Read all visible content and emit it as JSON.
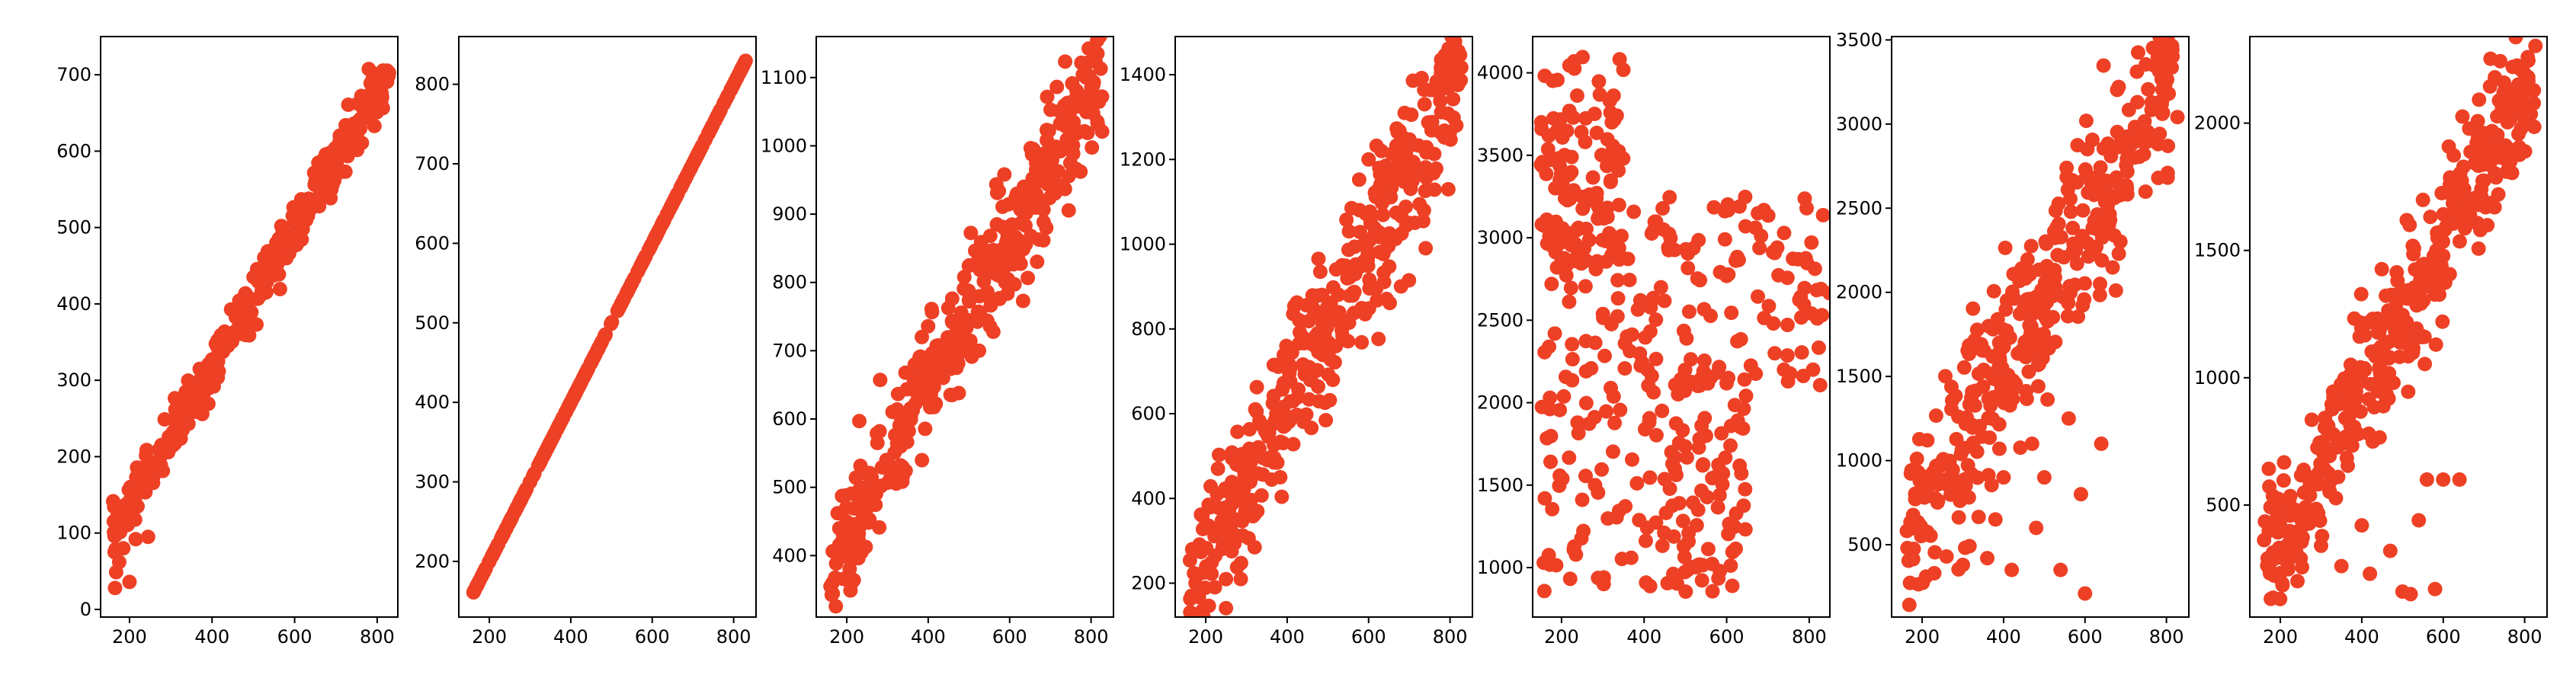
{
  "chart_data": [
    {
      "type": "scatter",
      "xlim": [
        130,
        850
      ],
      "ylim": [
        -10,
        750
      ],
      "xticks": [
        200,
        400,
        600,
        800
      ],
      "yticks": [
        0,
        100,
        200,
        300,
        400,
        500,
        600,
        700
      ],
      "marker_color": "#ee4025",
      "pattern": {
        "kind": "linear",
        "slope": 0.91,
        "intercept": -48,
        "noise": 16,
        "outliers": [
          [
            165,
            28
          ],
          [
            175,
            62
          ],
          [
            185,
            80
          ],
          [
            200,
            36
          ],
          [
            215,
            92
          ],
          [
            245,
            95
          ],
          [
            168,
            100
          ],
          [
            650,
            560
          ],
          [
            700,
            580
          ],
          [
            620,
            510
          ]
        ]
      }
    },
    {
      "type": "scatter",
      "xlim": [
        125,
        855
      ],
      "ylim": [
        130,
        860
      ],
      "xticks": [
        200,
        400,
        600,
        800
      ],
      "yticks": [
        200,
        300,
        400,
        500,
        600,
        700,
        800
      ],
      "marker_color": "#ee4025",
      "pattern": {
        "kind": "linear",
        "slope": 1.0,
        "intercept": 0,
        "noise": 0,
        "outliers": []
      }
    },
    {
      "type": "scatter",
      "xlim": [
        125,
        855
      ],
      "ylim": [
        310,
        1160
      ],
      "xticks": [
        200,
        400,
        600,
        800
      ],
      "yticks": [
        400,
        500,
        600,
        700,
        800,
        900,
        1000,
        1100
      ],
      "marker_color": "#ee4025",
      "pattern": {
        "kind": "linear",
        "slope": 1.1,
        "intercept": 205,
        "noise": 45,
        "outliers": [
          [
            160,
            355
          ],
          [
            165,
            360
          ],
          [
            210,
            395
          ],
          [
            300,
            540
          ],
          [
            690,
            880
          ]
        ]
      }
    },
    {
      "type": "scatter",
      "xlim": [
        125,
        855
      ],
      "ylim": [
        120,
        1490
      ],
      "xticks": [
        200,
        400,
        600,
        800
      ],
      "yticks": [
        200,
        400,
        600,
        800,
        1000,
        1200,
        1400
      ],
      "marker_color": "#ee4025",
      "pattern": {
        "kind": "linear",
        "slope": 1.85,
        "intercept": -130,
        "noise": 95,
        "outliers": [
          [
            165,
            170
          ],
          [
            175,
            200
          ],
          [
            180,
            280
          ],
          [
            230,
            470
          ],
          [
            600,
            1200
          ],
          [
            700,
            1050
          ]
        ]
      }
    },
    {
      "type": "scatter",
      "xlim": [
        130,
        850
      ],
      "ylim": [
        700,
        4220
      ],
      "xticks": [
        200,
        400,
        600,
        800
      ],
      "yticks": [
        1000,
        1500,
        2000,
        2500,
        3000,
        3500,
        4000
      ],
      "marker_color": "#ee4025",
      "pattern": {
        "kind": "scattered",
        "clusters": [
          [
            150,
            350,
            2800,
            4100
          ],
          [
            150,
            400,
            850,
            3300
          ],
          [
            400,
            850,
            2100,
            3250
          ],
          [
            400,
            650,
            850,
            2200
          ]
        ]
      }
    },
    {
      "type": "scatter",
      "xlim": [
        125,
        855
      ],
      "ylim": [
        70,
        3520
      ],
      "xticks": [
        200,
        400,
        600,
        800
      ],
      "yticks": [
        500,
        1000,
        1500,
        2000,
        2500,
        3000,
        3500
      ],
      "marker_color": "#ee4025",
      "pattern": {
        "kind": "linear",
        "slope": 4.3,
        "intercept": -200,
        "noise": 260,
        "outliers": [
          [
            260,
            430
          ],
          [
            300,
            380
          ],
          [
            360,
            420
          ],
          [
            420,
            350
          ],
          [
            480,
            600
          ],
          [
            500,
            900
          ],
          [
            540,
            350
          ],
          [
            560,
            1250
          ],
          [
            590,
            800
          ],
          [
            600,
            210
          ],
          [
            640,
            1100
          ],
          [
            470,
            1100
          ],
          [
            400,
            900
          ],
          [
            380,
            650
          ]
        ]
      }
    },
    {
      "type": "scatter",
      "xlim": [
        125,
        855
      ],
      "ylim": [
        60,
        2340
      ],
      "xticks": [
        200,
        400,
        600,
        800
      ],
      "yticks": [
        500,
        1000,
        1500,
        2000
      ],
      "marker_color": "#ee4025",
      "pattern": {
        "kind": "linear",
        "slope": 2.95,
        "intercept": -220,
        "noise": 150,
        "outliers": [
          [
            250,
            290
          ],
          [
            300,
            340
          ],
          [
            350,
            260
          ],
          [
            400,
            420
          ],
          [
            420,
            230
          ],
          [
            500,
            160
          ],
          [
            540,
            440
          ],
          [
            560,
            600
          ],
          [
            600,
            600
          ],
          [
            640,
            600
          ],
          [
            520,
            150
          ],
          [
            580,
            170
          ],
          [
            470,
            320
          ]
        ]
      }
    }
  ]
}
